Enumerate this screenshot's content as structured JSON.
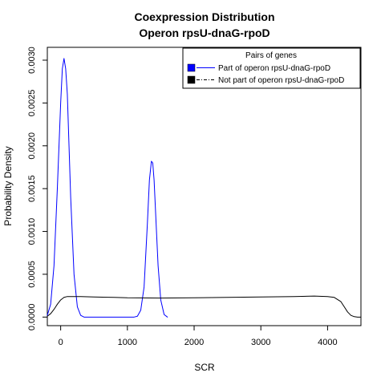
{
  "chart_data": {
    "type": "line",
    "title": "Coexpression Distribution",
    "subtitle": "Operon rpsU-dnaG-rpoD",
    "xlabel": "SCR",
    "ylabel": "Probability Density",
    "xlim": [
      -200,
      4500
    ],
    "ylim": [
      -0.0001,
      0.00315
    ],
    "x_ticks": [
      0,
      1000,
      2000,
      3000,
      4000
    ],
    "x_tick_labels": [
      "0",
      "1000",
      "2000",
      "3000",
      "4000"
    ],
    "y_ticks": [
      0,
      0.0005,
      0.001,
      0.0015,
      0.002,
      0.0025,
      0.003
    ],
    "y_tick_labels": [
      "0.0000",
      "0.0005",
      "0.0010",
      "0.0015",
      "0.0020",
      "0.0025",
      "0.0030"
    ],
    "grid": false,
    "legend": {
      "title": "Pairs of genes",
      "placement": "top-right",
      "entries": [
        {
          "label": "Part of operon rpsU-dnaG-rpoD",
          "color": "#0000ff"
        },
        {
          "label": "Not part of operon rpsU-dnaG-rpoD",
          "color": "#000000"
        }
      ]
    },
    "series": [
      {
        "name": "Part of operon rpsU-dnaG-rpoD",
        "color": "#0000ff",
        "x": [
          -200,
          -150,
          -100,
          -50,
          0,
          25,
          50,
          75,
          100,
          125,
          150,
          200,
          250,
          300,
          350,
          400,
          450,
          500,
          600,
          700,
          800,
          900,
          1000,
          1100,
          1150,
          1200,
          1250,
          1300,
          1330,
          1360,
          1380,
          1400,
          1430,
          1460,
          1500,
          1550,
          1600
        ],
        "y": [
          2e-05,
          0.00015,
          0.0006,
          0.0015,
          0.0025,
          0.0029,
          0.00302,
          0.0029,
          0.0026,
          0.002,
          0.0014,
          0.0005,
          0.00012,
          2e-05,
          0.0,
          0.0,
          0.0,
          0.0,
          0.0,
          0.0,
          0.0,
          0.0,
          0.0,
          0.0,
          1e-05,
          8e-05,
          0.00035,
          0.0011,
          0.0016,
          0.00182,
          0.0018,
          0.0016,
          0.0011,
          0.0006,
          0.0002,
          3e-05,
          0.0
        ]
      },
      {
        "name": "Not part of operon rpsU-dnaG-rpoD",
        "color": "#000000",
        "x": [
          -200,
          -150,
          -100,
          -50,
          0,
          50,
          100,
          150,
          200,
          300,
          500,
          800,
          1000,
          1500,
          2000,
          2500,
          3000,
          3500,
          3800,
          4000,
          4100,
          4200,
          4250,
          4300,
          4350,
          4400,
          4450,
          4500
        ],
        "y": [
          1e-05,
          4e-05,
          9e-05,
          0.00015,
          0.0002,
          0.00023,
          0.00024,
          0.00024,
          0.00024,
          0.00024,
          0.000235,
          0.00023,
          0.000225,
          0.000222,
          0.000225,
          0.00023,
          0.000235,
          0.00024,
          0.000245,
          0.00024,
          0.00023,
          0.00018,
          0.00012,
          6e-05,
          2e-05,
          5e-06,
          0.0,
          0.0
        ]
      }
    ]
  }
}
